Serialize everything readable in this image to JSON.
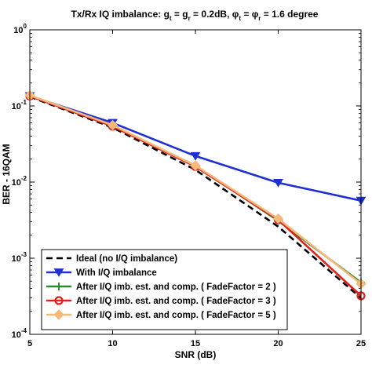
{
  "chart_data": {
    "type": "line",
    "title_parts": {
      "prefix": "Tx/Rx IQ imbalance: g",
      "sub_t": "t",
      "eq1": " = g",
      "sub_r": "r",
      "eq2": " = 0.2dB, ",
      "phi": "φ",
      "sub_t2": "t",
      "eq3": " = ",
      "phi2": "φ",
      "sub_r2": "r",
      "suffix": " = 1.6 degree"
    },
    "xlabel": "SNR (dB)",
    "ylabel": "BER - 16QAM",
    "xlim": [
      5,
      25
    ],
    "ylim": [
      0.0001,
      1
    ],
    "yscale": "log",
    "x_ticks": [
      5,
      10,
      15,
      20,
      25
    ],
    "y_ticks": [
      {
        "value": 1,
        "base": "10",
        "exp": "0"
      },
      {
        "value": 0.1,
        "base": "10",
        "exp": "-1"
      },
      {
        "value": 0.01,
        "base": "10",
        "exp": "-2"
      },
      {
        "value": 0.001,
        "base": "10",
        "exp": "-3"
      },
      {
        "value": 0.0001,
        "base": "10",
        "exp": "-4"
      }
    ],
    "legend_position": "bottom-left",
    "series": [
      {
        "name": "Ideal (no I/Q imbalance)",
        "color": "#000000",
        "dash": "dashed",
        "marker": "none",
        "x": [
          5,
          10,
          15,
          20,
          25
        ],
        "y": [
          0.132,
          0.052,
          0.0145,
          0.0026,
          0.0003
        ]
      },
      {
        "name": "With I/Q imbalance",
        "color": "#1f2fd1",
        "dash": "solid",
        "marker": "triangle-down",
        "x": [
          5,
          10,
          15,
          20,
          25
        ],
        "y": [
          0.135,
          0.06,
          0.022,
          0.0098,
          0.0057
        ]
      },
      {
        "name": "After I/Q imb. est. and comp. ( FadeFactor = 2 )",
        "color": "#2e8b2e",
        "dash": "solid",
        "marker": "plus",
        "x": [
          5,
          10,
          15,
          20,
          25
        ],
        "y": [
          0.135,
          0.055,
          0.0165,
          0.0031,
          0.00048
        ]
      },
      {
        "name": "After I/Q imb. est. and comp. ( FadeFactor = 3 )",
        "color": "#e3201b",
        "dash": "solid",
        "marker": "circle",
        "x": [
          5,
          10,
          15,
          20,
          25
        ],
        "y": [
          0.135,
          0.054,
          0.016,
          0.0032,
          0.00032
        ]
      },
      {
        "name": "After I/Q imb. est. and comp. ( FadeFactor = 5 )",
        "color": "#f5b97a",
        "dash": "solid",
        "marker": "diamond",
        "x": [
          5,
          10,
          15,
          20,
          25
        ],
        "y": [
          0.138,
          0.056,
          0.0165,
          0.0033,
          0.00046
        ]
      }
    ]
  }
}
